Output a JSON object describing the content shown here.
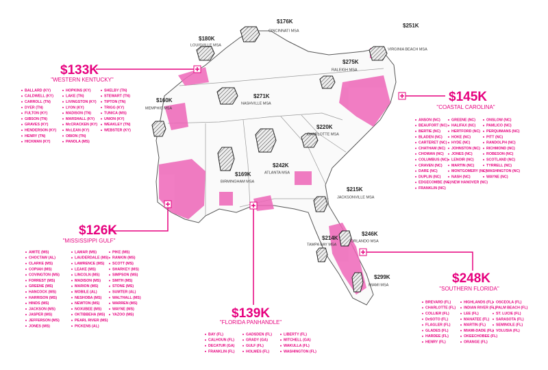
{
  "msas": [
    {
      "value": "$180K",
      "name": "LOUISVILLE MSA"
    },
    {
      "value": "$176K",
      "name": "CINCINNATI MSA"
    },
    {
      "value": "$251K",
      "name": "VIRGINIA BEACH MSA"
    },
    {
      "value": "$275K",
      "name": "RALEIGH MSA"
    },
    {
      "value": "$271K",
      "name": "NASHVILLE MSA"
    },
    {
      "value": "$160K",
      "name": "MEMPHIS MSA"
    },
    {
      "value": "$220K",
      "name": "CHARLOTTE MSA"
    },
    {
      "value": "$242K",
      "name": "ATLANTA MSA"
    },
    {
      "value": "$169K",
      "name": "BIRMINGHAM MSA"
    },
    {
      "value": "$215K",
      "name": "JACKSONVILLE MSA"
    },
    {
      "value": "$246K",
      "name": "ORLANDO MSA"
    },
    {
      "value": "$214K",
      "name": "TAMPA BAY MSA"
    },
    {
      "value": "$299K",
      "name": "MIAMI MSA"
    }
  ],
  "regions": [
    {
      "value": "$133K",
      "name": "\"WESTERN KENTUCKY\"",
      "columns": [
        [
          "BALLARD (KY)",
          "CALDWELL (KY)",
          "CARROLL (TN)",
          "DYER (TN)",
          "FULTON (KY)",
          "GIBSON (TN)",
          "GRAVES (KY)",
          "HENDERSON (KY)",
          "HENRY (TN)",
          "HICKMAN (KY)"
        ],
        [
          "HOPKINS (KY)",
          "LAKE (TN)",
          "LIVINGSTON (KY)",
          "LYON (KY)",
          "MADISON (TN)",
          "MARSHALL (KY)",
          "McCRACKEN (KY)",
          "McLEAN (KY)",
          "OBION (TN)",
          "PANOLA (MS)"
        ],
        [
          "SHELBY (TN)",
          "STEWART (TN)",
          "TIPTON (TN)",
          "TRIGG (KY)",
          "TUNICA (MS)",
          "UNION (KY)",
          "WEAKLEY (TN)",
          "WEBSTER (KY)"
        ]
      ]
    },
    {
      "value": "$145K",
      "name": "\"COASTAL CAROLINA\"",
      "columns": [
        [
          "ANSON (NC)",
          "BEAUFORT (NC)",
          "BERTIE (NC)",
          "BLADEN (NC)",
          "CARTERET (NC)",
          "CHATHAM (NC)",
          "CHOWAN (NC)",
          "COLUMBUS (NC)",
          "CRAVEN (NC)",
          "DARE (NC)",
          "DUPLIN (NC)",
          "EDGECOMBE (NC)",
          "FRANKLIN (NC)"
        ],
        [
          "GREENE (NC)",
          "HALIFAX (NC)",
          "HERTFORD (NC)",
          "HOKE (NC)",
          "HYDE (NC)",
          "JOHNSTON (NC)",
          "JONES (NC)",
          "LENOIR (NC)",
          "MARTIN (NC)",
          "MONTGOMERY (NC)",
          "NASH (NC)",
          "NEW HANOVER (NC)"
        ],
        [
          "ONSLOW (NC)",
          "PAMLICO (NC)",
          "PERQUIMANS (NC)",
          "PITT (NC)",
          "RANDOLPH (NC)",
          "RICHMOND (NC)",
          "ROBESON (NC)",
          "SCOTLAND (NC)",
          "TYRRELL (NC)",
          "WASHINGTON (NC)",
          "WAYNE (NC)"
        ]
      ]
    },
    {
      "value": "$126K",
      "name": "\"MISSISSIPPI GULF\"",
      "columns": [
        [
          "AMITE (MS)",
          "CHOCTAW (AL)",
          "CLARKE (MS)",
          "COPIAH (MS)",
          "COVINGTON (MS)",
          "FORREST (MS)",
          "GREENE (MS)",
          "HANCOCK (MS)",
          "HARRISON (MS)",
          "HINDS (MS)",
          "JACKSON (MS)",
          "JASPER (MS)",
          "JEFFERSON (MS)",
          "JONES (MS)"
        ],
        [
          "LAMAR (MS)",
          "LAUDERDALE (MS)",
          "LAWRENCE (MS)",
          "LEAKE (MS)",
          "LINCOLN (MS)",
          "MADISON (MS)",
          "MARION (MS)",
          "MOBILE (AL)",
          "NESHOBA (MS)",
          "NEWTON (MS)",
          "NOXUBEE (MS)",
          "OKTIBBEHA (MS)",
          "PEARL RIVER (MS)",
          "PICKENS (AL)"
        ],
        [
          "PIKE (MS)",
          "RANKIN (MS)",
          "SCOTT (MS)",
          "SHARKEY (MS)",
          "SIMPSON (MS)",
          "SMITH (MS)",
          "STONE (MS)",
          "SUMTER (AL)",
          "WALTHALL (MS)",
          "WARREN (MS)",
          "WAYNE (MS)",
          "YAZOO (MS)"
        ]
      ]
    },
    {
      "value": "$139K",
      "name": "\"FLORIDA PANHANDLE\"",
      "columns": [
        [
          "BAY (FL)",
          "CALHOUN (FL)",
          "DECATUR (GA)",
          "FRANKLIN (FL)"
        ],
        [
          "GADSDEN (FL)",
          "GRADY (GA)",
          "GULF (FL)",
          "HOLMES (FL)"
        ],
        [
          "LIBERTY (FL)",
          "MITCHELL (GA)",
          "WAKULLA (FL)",
          "WASHINGTON (FL)"
        ]
      ]
    },
    {
      "value": "$248K",
      "name": "\"SOUTHERN FLORIDA\"",
      "columns": [
        [
          "BREVARD (FL)",
          "CHARLOTTE (FL)",
          "COLLIER (FL)",
          "DeSOTO (FL)",
          "FLAGLER (FL)",
          "GLADES (FL)",
          "HARDEE (FL)",
          "HENRY (FL)"
        ],
        [
          "HIGHLANDS (FL)",
          "INDIAN RIVER (FL)",
          "LEE (FL)",
          "MANATEE (FL)",
          "MARTIN (FL)",
          "MIAMI-DADE (FL)",
          "OKEECHOBEE (FL)",
          "ORANGE (FL)"
        ],
        [
          "OSCEOLA (FL)",
          "PALM BEACH (FL)",
          "ST. LUCIE (FL)",
          "SARASOTA (FL)",
          "SEMINOLE (FL)",
          "VOLUSIA (FL)"
        ]
      ]
    }
  ]
}
